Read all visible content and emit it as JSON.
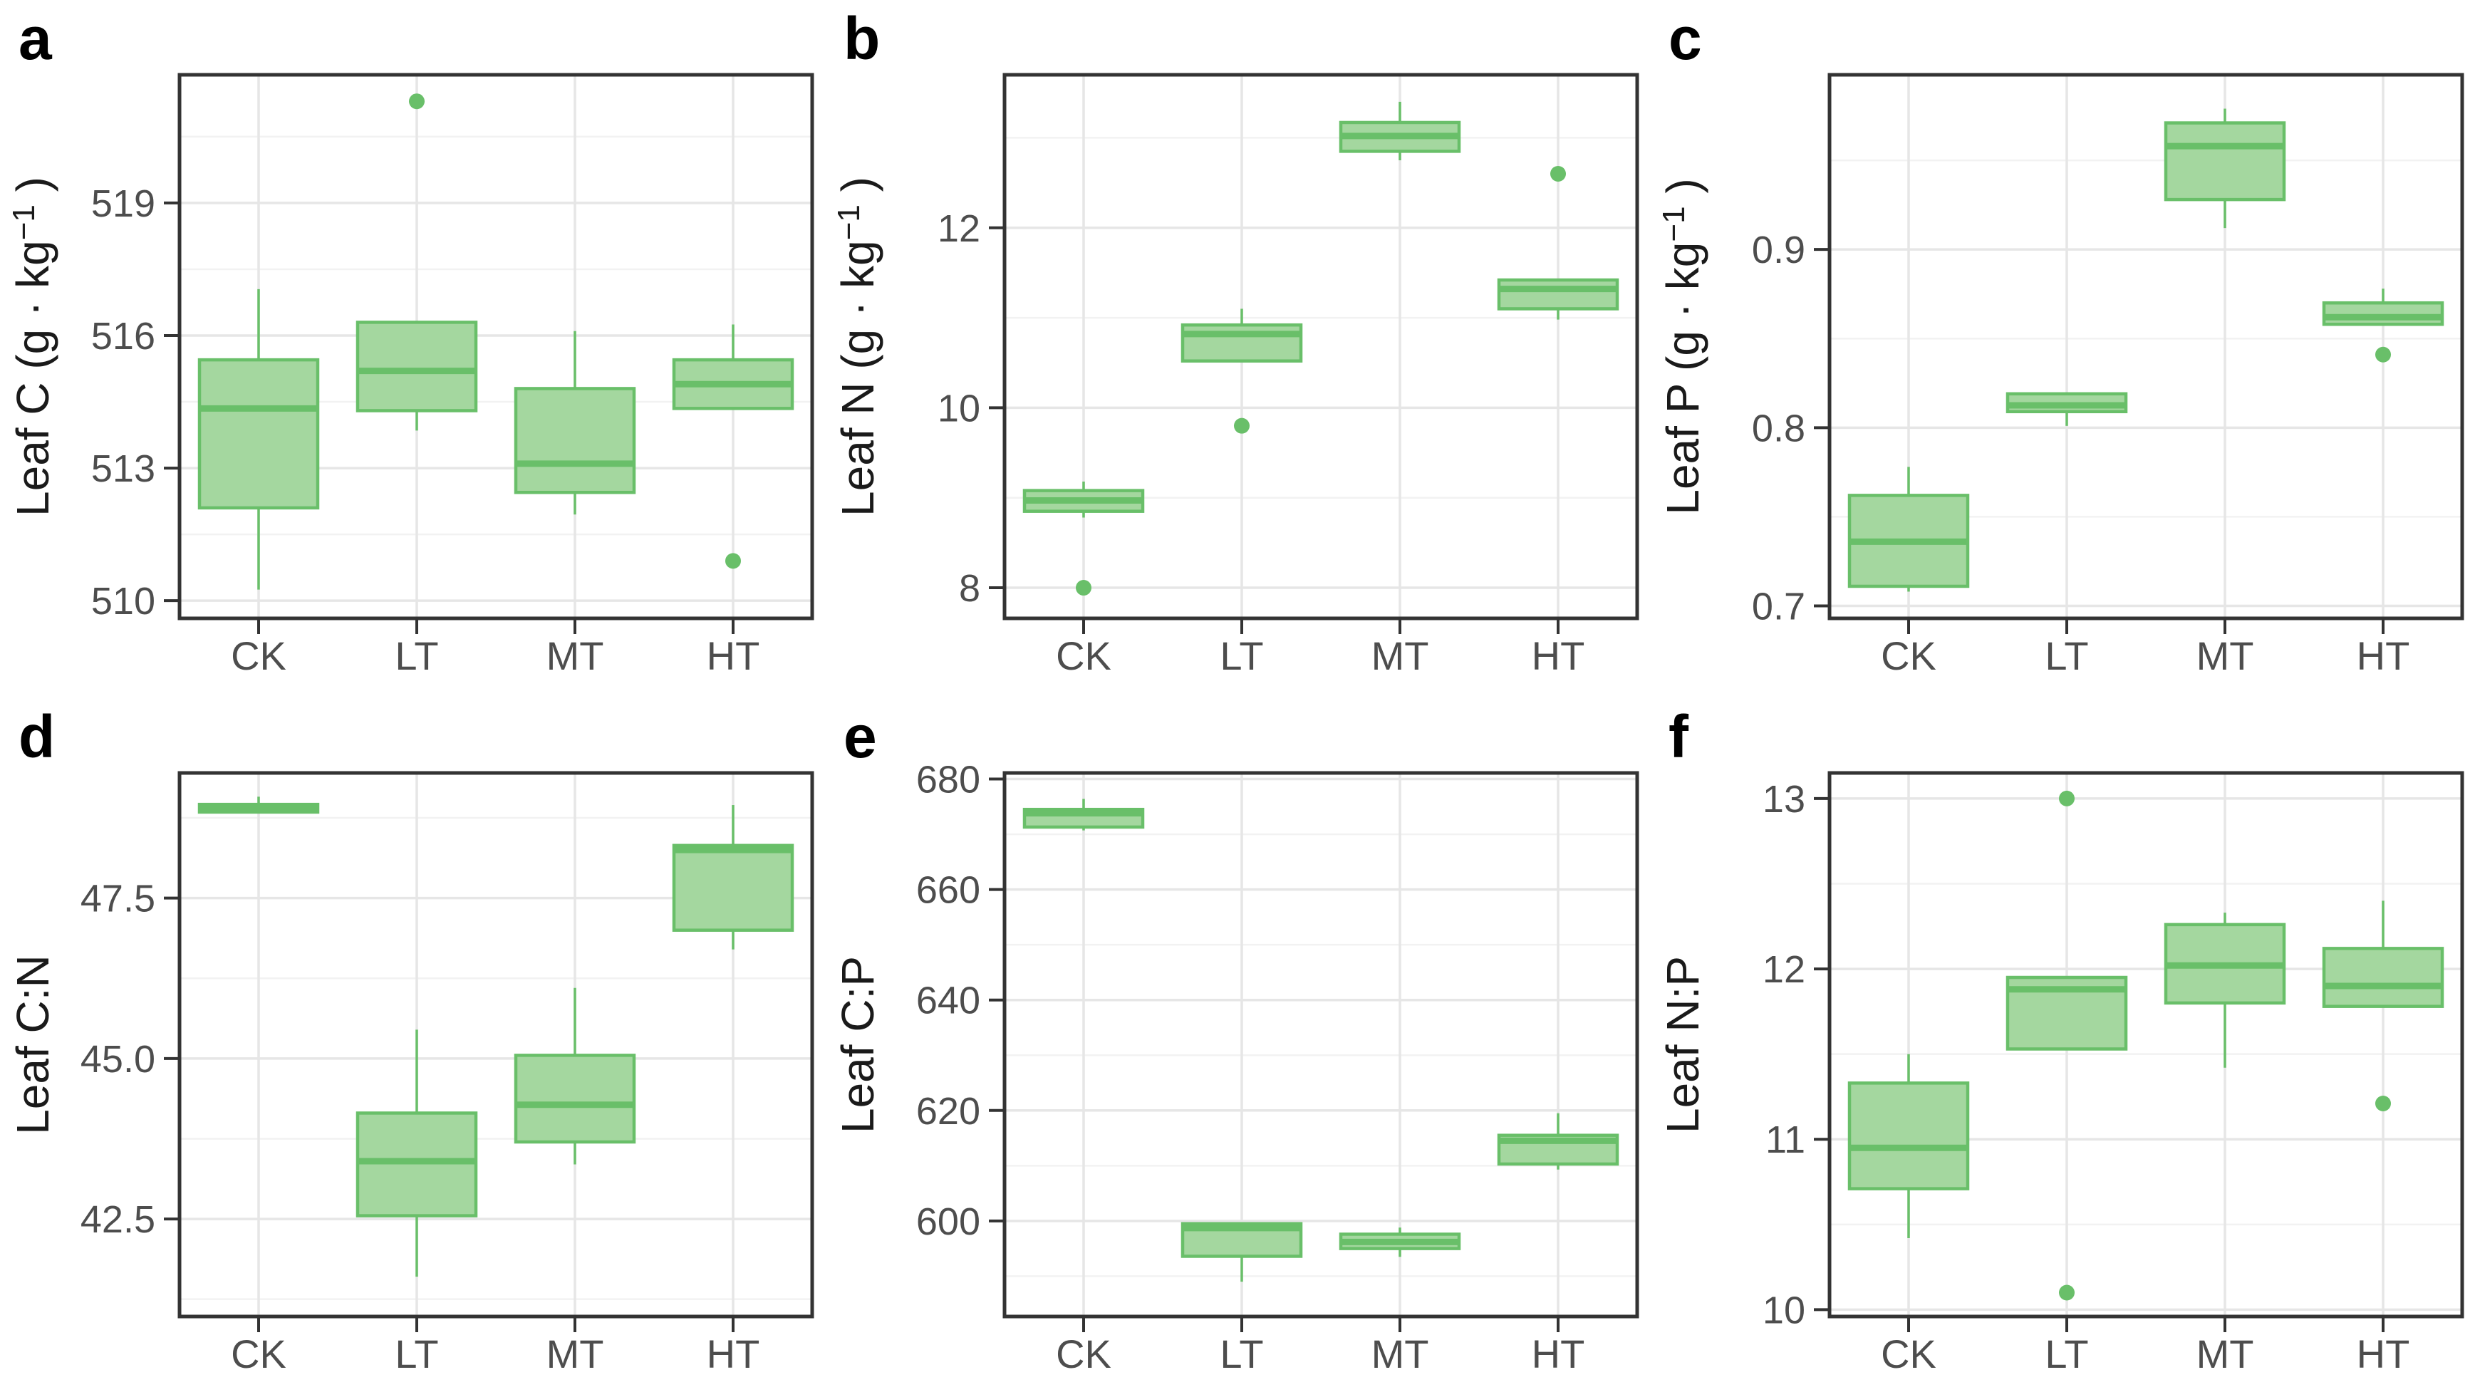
{
  "figure": {
    "background": "#ffffff",
    "colors": {
      "box_fill": "#a4d79f",
      "box_stroke": "#69bf69",
      "grid_major": "#e6e6e6",
      "grid_minor": "#f2f2f2",
      "panel_border": "#333333",
      "axis_tick": "#333333",
      "tick_label": "#4d4d4d",
      "axis_title": "#1a1a1a",
      "panel_letter": "#000000"
    }
  },
  "chart_data": [
    {
      "type": "boxplot",
      "panel_label": "a",
      "ylabel": {
        "pre": "Leaf C (g · kg",
        "sup": "−1",
        "post": " )"
      },
      "categories": [
        "CK",
        "LT",
        "MT",
        "HT"
      ],
      "ylim": [
        509.6,
        521.9
      ],
      "yticks": [
        510,
        513,
        516,
        519
      ],
      "ytick_labels": [
        "510",
        "513",
        "516",
        "519"
      ],
      "boxes": [
        {
          "category": "CK",
          "whisker_low": 510.25,
          "q1": 512.1,
          "median": 514.35,
          "q3": 515.45,
          "whisker_high": 517.05,
          "outliers": []
        },
        {
          "category": "LT",
          "whisker_low": 513.85,
          "q1": 514.3,
          "median": 515.2,
          "q3": 516.3,
          "whisker_high": 516.3,
          "outliers": [
            521.3
          ]
        },
        {
          "category": "MT",
          "whisker_low": 511.95,
          "q1": 512.45,
          "median": 513.1,
          "q3": 514.8,
          "whisker_high": 516.1,
          "outliers": []
        },
        {
          "category": "HT",
          "whisker_low": 514.35,
          "q1": 514.35,
          "median": 514.9,
          "q3": 515.45,
          "whisker_high": 516.25,
          "outliers": [
            510.9
          ]
        }
      ]
    },
    {
      "type": "boxplot",
      "panel_label": "b",
      "ylabel": {
        "pre": "Leaf N (g · kg",
        "sup": "−1",
        "post": " )"
      },
      "categories": [
        "CK",
        "LT",
        "MT",
        "HT"
      ],
      "ylim": [
        7.66,
        13.7
      ],
      "yticks": [
        8,
        10,
        12
      ],
      "ytick_labels": [
        "8",
        "10",
        "12"
      ],
      "boxes": [
        {
          "category": "CK",
          "whisker_low": 8.78,
          "q1": 8.85,
          "median": 8.97,
          "q3": 9.08,
          "whisker_high": 9.18,
          "outliers": [
            8.0
          ]
        },
        {
          "category": "LT",
          "whisker_low": 10.52,
          "q1": 10.52,
          "median": 10.82,
          "q3": 10.92,
          "whisker_high": 11.1,
          "outliers": [
            9.8
          ]
        },
        {
          "category": "MT",
          "whisker_low": 12.75,
          "q1": 12.85,
          "median": 13.02,
          "q3": 13.17,
          "whisker_high": 13.4,
          "outliers": []
        },
        {
          "category": "HT",
          "whisker_low": 10.98,
          "q1": 11.1,
          "median": 11.32,
          "q3": 11.42,
          "whisker_high": 11.42,
          "outliers": [
            12.6
          ]
        }
      ]
    },
    {
      "type": "boxplot",
      "panel_label": "c",
      "ylabel": {
        "pre": "Leaf P (g · kg",
        "sup": "−1",
        "post": " )"
      },
      "categories": [
        "CK",
        "LT",
        "MT",
        "HT"
      ],
      "ylim": [
        0.693,
        0.998
      ],
      "yticks": [
        0.7,
        0.8,
        0.9
      ],
      "ytick_labels": [
        "0.7",
        "0.8",
        "0.9"
      ],
      "boxes": [
        {
          "category": "CK",
          "whisker_low": 0.708,
          "q1": 0.711,
          "median": 0.736,
          "q3": 0.762,
          "whisker_high": 0.778,
          "outliers": []
        },
        {
          "category": "LT",
          "whisker_low": 0.801,
          "q1": 0.809,
          "median": 0.8125,
          "q3": 0.819,
          "whisker_high": 0.819,
          "outliers": []
        },
        {
          "category": "MT",
          "whisker_low": 0.912,
          "q1": 0.928,
          "median": 0.958,
          "q3": 0.971,
          "whisker_high": 0.979,
          "outliers": []
        },
        {
          "category": "HT",
          "whisker_low": 0.858,
          "q1": 0.858,
          "median": 0.862,
          "q3": 0.87,
          "whisker_high": 0.878,
          "outliers": [
            0.841
          ]
        }
      ]
    },
    {
      "type": "boxplot",
      "panel_label": "d",
      "ylabel": {
        "pre": "Leaf C:N"
      },
      "categories": [
        "CK",
        "LT",
        "MT",
        "HT"
      ],
      "ylim": [
        40.98,
        49.45
      ],
      "yticks": [
        42.5,
        45.0,
        47.5
      ],
      "ytick_labels": [
        "42.5",
        "45.0",
        "47.5"
      ],
      "boxes": [
        {
          "category": "CK",
          "whisker_low": 48.84,
          "q1": 48.84,
          "median": 48.9,
          "q3": 48.96,
          "whisker_high": 49.08,
          "outliers": []
        },
        {
          "category": "LT",
          "whisker_low": 41.6,
          "q1": 42.55,
          "median": 43.4,
          "q3": 44.15,
          "whisker_high": 45.45,
          "outliers": []
        },
        {
          "category": "MT",
          "whisker_low": 43.35,
          "q1": 43.7,
          "median": 44.28,
          "q3": 45.05,
          "whisker_high": 46.1,
          "outliers": []
        },
        {
          "category": "HT",
          "whisker_low": 46.7,
          "q1": 47.0,
          "median": 48.25,
          "q3": 48.32,
          "whisker_high": 48.95,
          "outliers": []
        }
      ]
    },
    {
      "type": "boxplot",
      "panel_label": "e",
      "ylabel": {
        "pre": "Leaf C:P"
      },
      "categories": [
        "CK",
        "LT",
        "MT",
        "HT"
      ],
      "ylim": [
        582.7,
        681.1
      ],
      "yticks": [
        600,
        620,
        640,
        660,
        680
      ],
      "ytick_labels": [
        "600",
        "620",
        "640",
        "660",
        "680"
      ],
      "boxes": [
        {
          "category": "CK",
          "whisker_low": 670.7,
          "q1": 671.3,
          "median": 673.8,
          "q3": 674.5,
          "whisker_high": 676.4,
          "outliers": []
        },
        {
          "category": "LT",
          "whisker_low": 589.0,
          "q1": 593.6,
          "median": 598.7,
          "q3": 599.5,
          "whisker_high": 599.5,
          "outliers": []
        },
        {
          "category": "MT",
          "whisker_low": 593.5,
          "q1": 595.0,
          "median": 596.2,
          "q3": 597.6,
          "whisker_high": 598.8,
          "outliers": []
        },
        {
          "category": "HT",
          "whisker_low": 609.3,
          "q1": 610.3,
          "median": 614.5,
          "q3": 615.5,
          "whisker_high": 619.5,
          "outliers": []
        }
      ]
    },
    {
      "type": "boxplot",
      "panel_label": "f",
      "ylabel": {
        "pre": "Leaf N:P"
      },
      "categories": [
        "CK",
        "LT",
        "MT",
        "HT"
      ],
      "ylim": [
        9.96,
        13.15
      ],
      "yticks": [
        10,
        11,
        12,
        13
      ],
      "ytick_labels": [
        "10",
        "11",
        "12",
        "13"
      ],
      "boxes": [
        {
          "category": "CK",
          "whisker_low": 10.42,
          "q1": 10.71,
          "median": 10.95,
          "q3": 11.33,
          "whisker_high": 11.5,
          "outliers": []
        },
        {
          "category": "LT",
          "whisker_low": 11.53,
          "q1": 11.53,
          "median": 11.88,
          "q3": 11.95,
          "whisker_high": 11.95,
          "outliers": [
            13.0,
            10.1
          ]
        },
        {
          "category": "MT",
          "whisker_low": 11.42,
          "q1": 11.8,
          "median": 12.02,
          "q3": 12.26,
          "whisker_high": 12.33,
          "outliers": []
        },
        {
          "category": "HT",
          "whisker_low": 11.78,
          "q1": 11.78,
          "median": 11.9,
          "q3": 12.12,
          "whisker_high": 12.4,
          "outliers": [
            11.21
          ]
        }
      ]
    }
  ]
}
